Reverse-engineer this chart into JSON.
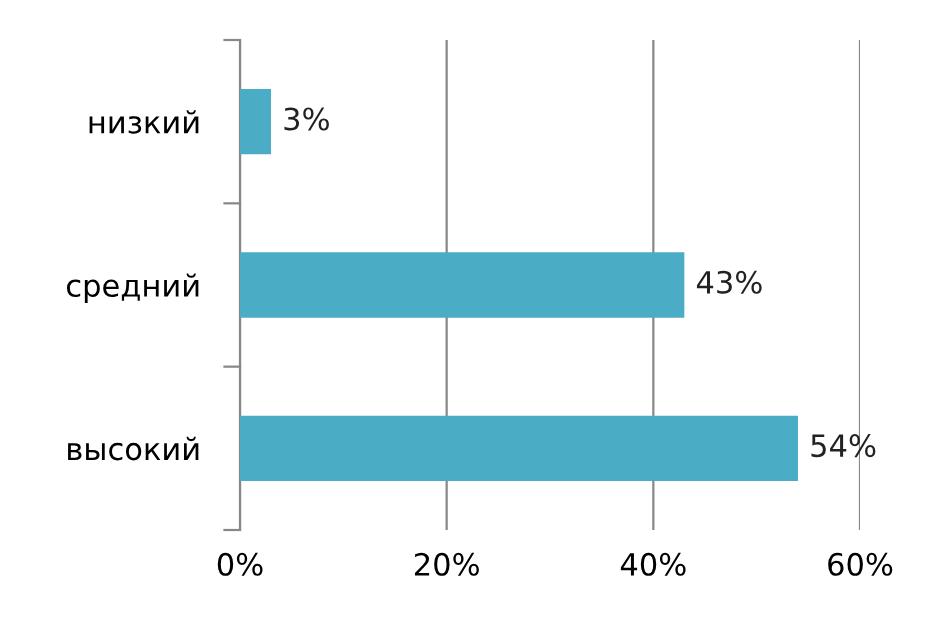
{
  "chart_data": {
    "type": "bar",
    "orientation": "horizontal",
    "categories": [
      "низкий",
      "средний",
      "высокий"
    ],
    "values": [
      3,
      43,
      54
    ],
    "value_labels": [
      "3%",
      "43%",
      "54%"
    ],
    "color": "#4bacc6",
    "xlim": [
      0,
      60
    ],
    "xticks": [
      {
        "value": 0,
        "label": "0%"
      },
      {
        "value": 20,
        "label": "20%"
      },
      {
        "value": 40,
        "label": "40%"
      },
      {
        "value": 60,
        "label": "60%"
      }
    ],
    "grid": "x",
    "legend": false
  }
}
